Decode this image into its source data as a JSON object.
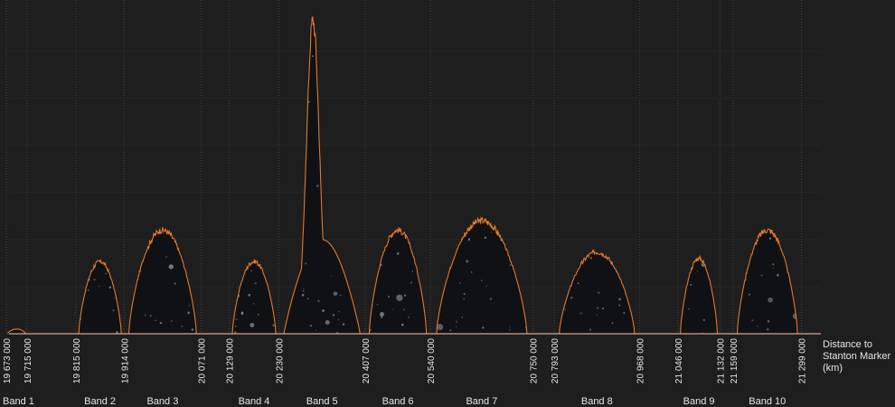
{
  "chart_data": {
    "type": "area",
    "title": "",
    "xlabel_lines": [
      "Distance to",
      "Stanton Marker",
      "(km)"
    ],
    "ylabel": "",
    "xlim": [
      19660000,
      21490000
    ],
    "ylim": [
      0,
      1
    ],
    "grid": "vertical",
    "legend": "none",
    "x_ticks": [
      {
        "value": 19673000,
        "label": "19 673 000"
      },
      {
        "value": 19715000,
        "label": "19 715 000"
      },
      {
        "value": 19815000,
        "label": "19 815 000"
      },
      {
        "value": 19914000,
        "label": "19 914 000"
      },
      {
        "value": 20071000,
        "label": "20 071 000"
      },
      {
        "value": 20129000,
        "label": "20 129 000"
      },
      {
        "value": 20230000,
        "label": "20 230 000"
      },
      {
        "value": 20407000,
        "label": "20 407 000"
      },
      {
        "value": 20540000,
        "label": "20 540 000"
      },
      {
        "value": 20750000,
        "label": "20 750 000"
      },
      {
        "value": 20793000,
        "label": "20 793 000"
      },
      {
        "value": 20968000,
        "label": "20 968 000"
      },
      {
        "value": 21046000,
        "label": "21 046 000"
      },
      {
        "value": 21132000,
        "label": "21 132 000"
      },
      {
        "value": 21159000,
        "label": "21 159 000"
      },
      {
        "value": 21299000,
        "label": "21 299 000"
      }
    ],
    "bands": [
      {
        "name": "Band 1",
        "start": 19673000,
        "end": 19715000,
        "peak": 0.015,
        "center": 19694000,
        "label_x": 19720000
      },
      {
        "name": "Band 2",
        "start": 19815000,
        "end": 19914000,
        "peak": 0.23,
        "center": 19864500
      },
      {
        "name": "Band 3",
        "start": 19914000,
        "end": 20071000,
        "peak": 0.33,
        "center": 19992500
      },
      {
        "name": "Band 4",
        "start": 20129000,
        "end": 20230000,
        "peak": 0.23,
        "center": 20179500
      },
      {
        "name": "Band 5",
        "start": 20230000,
        "end": 20407000,
        "peak": 1.0,
        "center": 20318500
      },
      {
        "name": "Band 6",
        "start": 20407000,
        "end": 20540000,
        "peak": 0.33,
        "center": 20473500
      },
      {
        "name": "Band 7",
        "start": 20540000,
        "end": 20750000,
        "peak": 0.36,
        "center": 20645000
      },
      {
        "name": "Band 8",
        "start": 20793000,
        "end": 20968000,
        "peak": 0.26,
        "center": 20880500
      },
      {
        "name": "Band 9",
        "start": 21046000,
        "end": 21132000,
        "peak": 0.24,
        "center": 21089000
      },
      {
        "name": "Band 10",
        "start": 21159000,
        "end": 21299000,
        "peak": 0.33,
        "center": 21229000
      }
    ],
    "colors": {
      "background": "#1e1e1e",
      "fill": "#101114",
      "outline": "#e0782e",
      "grid": "#3c4a34",
      "baseline": "#d8a48a",
      "speckle": "#8a8d96"
    }
  }
}
